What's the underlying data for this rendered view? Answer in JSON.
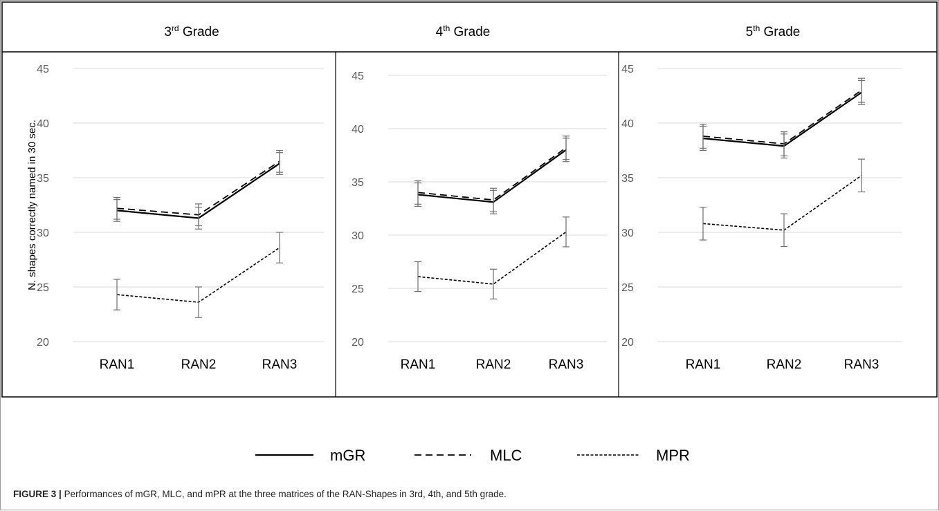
{
  "caption": {
    "label": "FIGURE 3 |",
    "text": "Performances of mGR, MLC, and mPR at the three matrices of the RAN-Shapes in 3rd, 4th, and 5th grade."
  },
  "legend": [
    {
      "name": "mGR",
      "style": "solid"
    },
    {
      "name": "MLC",
      "style": "dashed"
    },
    {
      "name": "MPR",
      "style": "dotted"
    }
  ],
  "chart_data": [
    {
      "type": "line",
      "title": "3rd Grade",
      "title_base": "3",
      "title_sup": "rd",
      "title_rest": " Grade",
      "ylabel": "N. shapes correctly named in 30 sec.",
      "categories": [
        "RAN1",
        "RAN2",
        "RAN3"
      ],
      "ylim": [
        20,
        45
      ],
      "yticks": [
        "20",
        "25",
        "30",
        "35",
        "40",
        "45"
      ],
      "grid": true,
      "series": [
        {
          "name": "mGR",
          "values": [
            32.0,
            31.3,
            36.3
          ],
          "errors": [
            1.0,
            1.0,
            1.0
          ]
        },
        {
          "name": "MLC",
          "values": [
            32.2,
            31.6,
            36.5
          ],
          "errors": [
            1.0,
            1.0,
            1.0
          ]
        },
        {
          "name": "MPR",
          "values": [
            24.3,
            23.6,
            28.6
          ],
          "errors": [
            1.4,
            1.4,
            1.4
          ]
        }
      ]
    },
    {
      "type": "line",
      "title": "4th Grade",
      "title_base": "4",
      "title_sup": "th",
      "title_rest": " Grade",
      "ylabel": "",
      "categories": [
        "RAN1",
        "RAN2",
        "RAN3"
      ],
      "ylim": [
        20,
        45
      ],
      "yticks": [
        "20",
        "25",
        "30",
        "35",
        "40",
        "45"
      ],
      "grid": true,
      "series": [
        {
          "name": "mGR",
          "values": [
            33.8,
            33.1,
            38.0
          ],
          "errors": [
            1.1,
            1.1,
            1.1
          ]
        },
        {
          "name": "MLC",
          "values": [
            34.0,
            33.3,
            38.2
          ],
          "errors": [
            1.1,
            1.1,
            1.1
          ]
        },
        {
          "name": "MPR",
          "values": [
            26.1,
            25.4,
            30.3
          ],
          "errors": [
            1.4,
            1.4,
            1.4
          ]
        }
      ]
    },
    {
      "type": "line",
      "title": "5th Grade",
      "title_base": "5",
      "title_sup": "th",
      "title_rest": " Grade",
      "ylabel": "",
      "categories": [
        "RAN1",
        "RAN2",
        "RAN3"
      ],
      "ylim": [
        20,
        45
      ],
      "yticks": [
        "20",
        "25",
        "30",
        "35",
        "40",
        "45"
      ],
      "grid": true,
      "series": [
        {
          "name": "mGR",
          "values": [
            38.6,
            37.9,
            42.8
          ],
          "errors": [
            1.1,
            1.1,
            1.1
          ]
        },
        {
          "name": "MLC",
          "values": [
            38.8,
            38.1,
            43.0
          ],
          "errors": [
            1.1,
            1.1,
            1.1
          ]
        },
        {
          "name": "MPR",
          "values": [
            30.8,
            30.2,
            35.2
          ],
          "errors": [
            1.5,
            1.5,
            1.5
          ]
        }
      ]
    }
  ]
}
